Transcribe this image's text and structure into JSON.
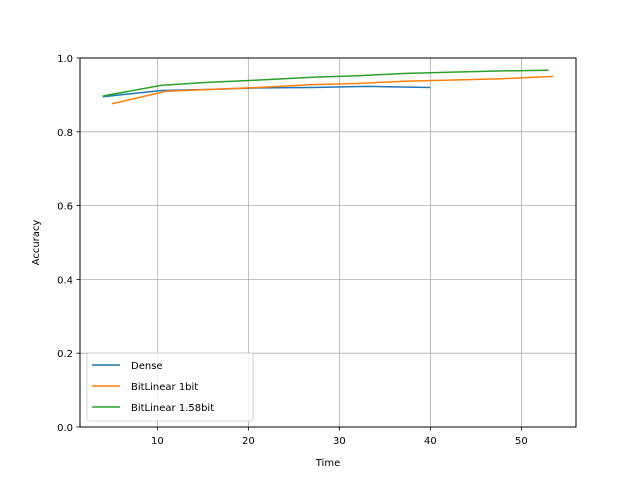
{
  "chart_data": {
    "type": "line",
    "title": "",
    "xlabel": "Time",
    "ylabel": "Accuracy",
    "xlim": [
      1.5,
      56
    ],
    "ylim": [
      0.0,
      1.0
    ],
    "xticks": [
      10,
      20,
      30,
      40,
      50
    ],
    "yticks": [
      0.0,
      0.2,
      0.4,
      0.6,
      0.8,
      1.0
    ],
    "ytick_labels": [
      "0.0",
      "0.2",
      "0.4",
      "0.6",
      "0.8",
      "1.0"
    ],
    "xtick_labels": [
      "10",
      "20",
      "30",
      "40",
      "50"
    ],
    "grid": true,
    "legend_position": "lower left",
    "series": [
      {
        "name": "Dense",
        "color": "#1f77b4",
        "x": [
          4,
          10.5,
          16,
          21,
          27,
          33,
          40
        ],
        "y": [
          0.895,
          0.912,
          0.915,
          0.919,
          0.92,
          0.923,
          0.92
        ]
      },
      {
        "name": "BitLinear 1bit",
        "color": "#ff7f0e",
        "x": [
          5,
          11,
          16,
          21,
          27,
          32,
          37,
          42,
          48,
          53.5
        ],
        "y": [
          0.876,
          0.91,
          0.915,
          0.92,
          0.928,
          0.931,
          0.937,
          0.94,
          0.944,
          0.95
        ]
      },
      {
        "name": "BitLinear 1.58bit",
        "color": "#2ca02c",
        "x": [
          4,
          10.5,
          15.5,
          21,
          27,
          32,
          37,
          43,
          48,
          53
        ],
        "y": [
          0.897,
          0.926,
          0.934,
          0.94,
          0.948,
          0.952,
          0.958,
          0.962,
          0.965,
          0.967
        ]
      }
    ]
  }
}
